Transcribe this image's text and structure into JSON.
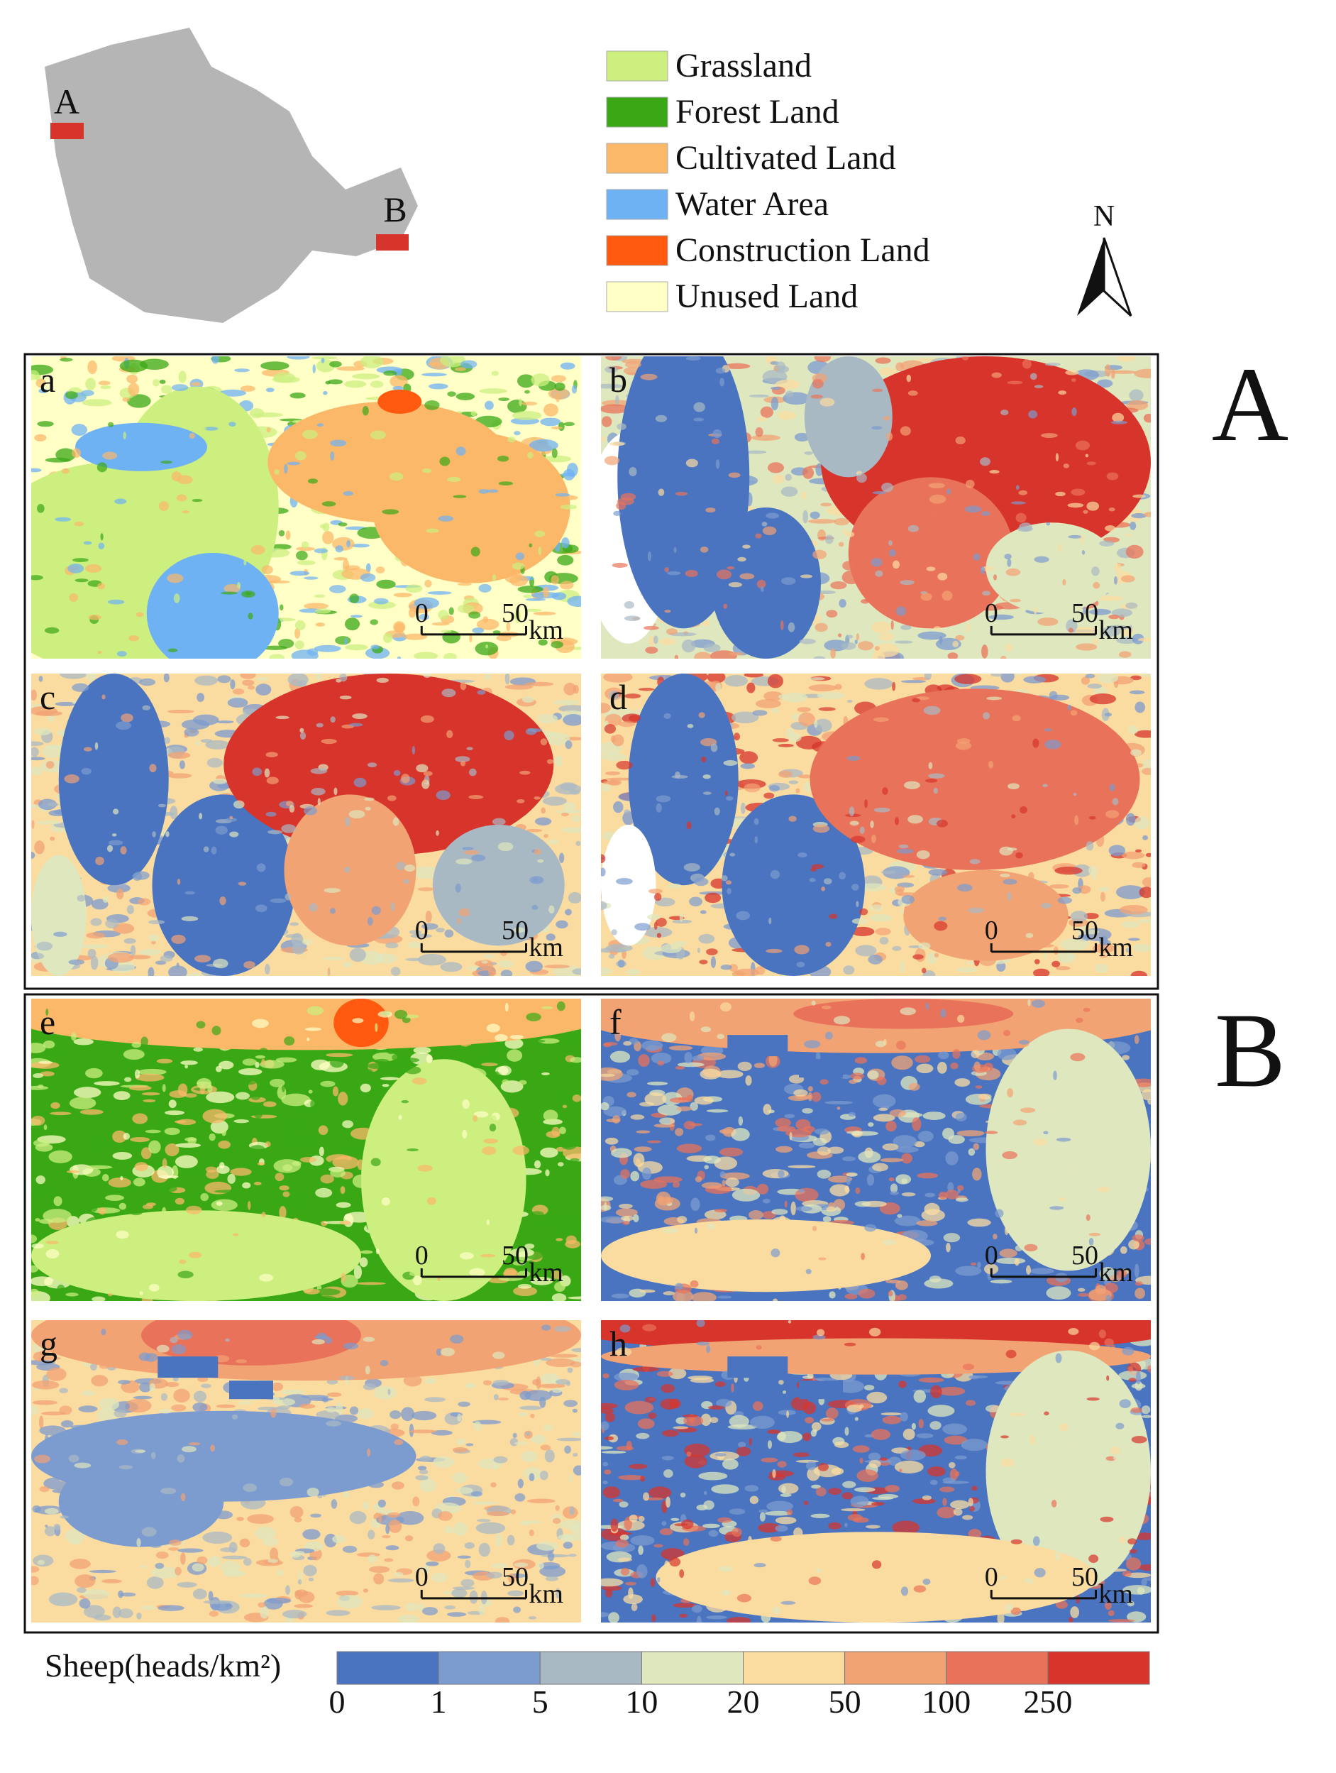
{
  "inset": {
    "regions": [
      "A",
      "B"
    ]
  },
  "legend": {
    "items": [
      {
        "name": "Grassland",
        "color": "#ccef80"
      },
      {
        "name": "Forest Land",
        "color": "#3aa815"
      },
      {
        "name": "Cultivated Land",
        "color": "#fbb869"
      },
      {
        "name": "Water Area",
        "color": "#6fb2f4"
      },
      {
        "name": "Construction Land",
        "color": "#ff5a0f"
      },
      {
        "name": "Unused Land",
        "color": "#ffffc6"
      }
    ]
  },
  "north": "N",
  "panels": [
    "a",
    "b",
    "c",
    "d",
    "e",
    "f",
    "g",
    "h"
  ],
  "scale_bar": {
    "start": "0",
    "end": "50",
    "unit": "km"
  },
  "colorbar": {
    "label": "Sheep(heads/km²)",
    "ticks": [
      0,
      1,
      5,
      10,
      20,
      50,
      100,
      250
    ],
    "colors": [
      "#4a74c0",
      "#7c9bcf",
      "#a9b9c4",
      "#dfe7bf",
      "#fbdca0",
      "#f2a374",
      "#e9735a",
      "#d7342c"
    ]
  }
}
